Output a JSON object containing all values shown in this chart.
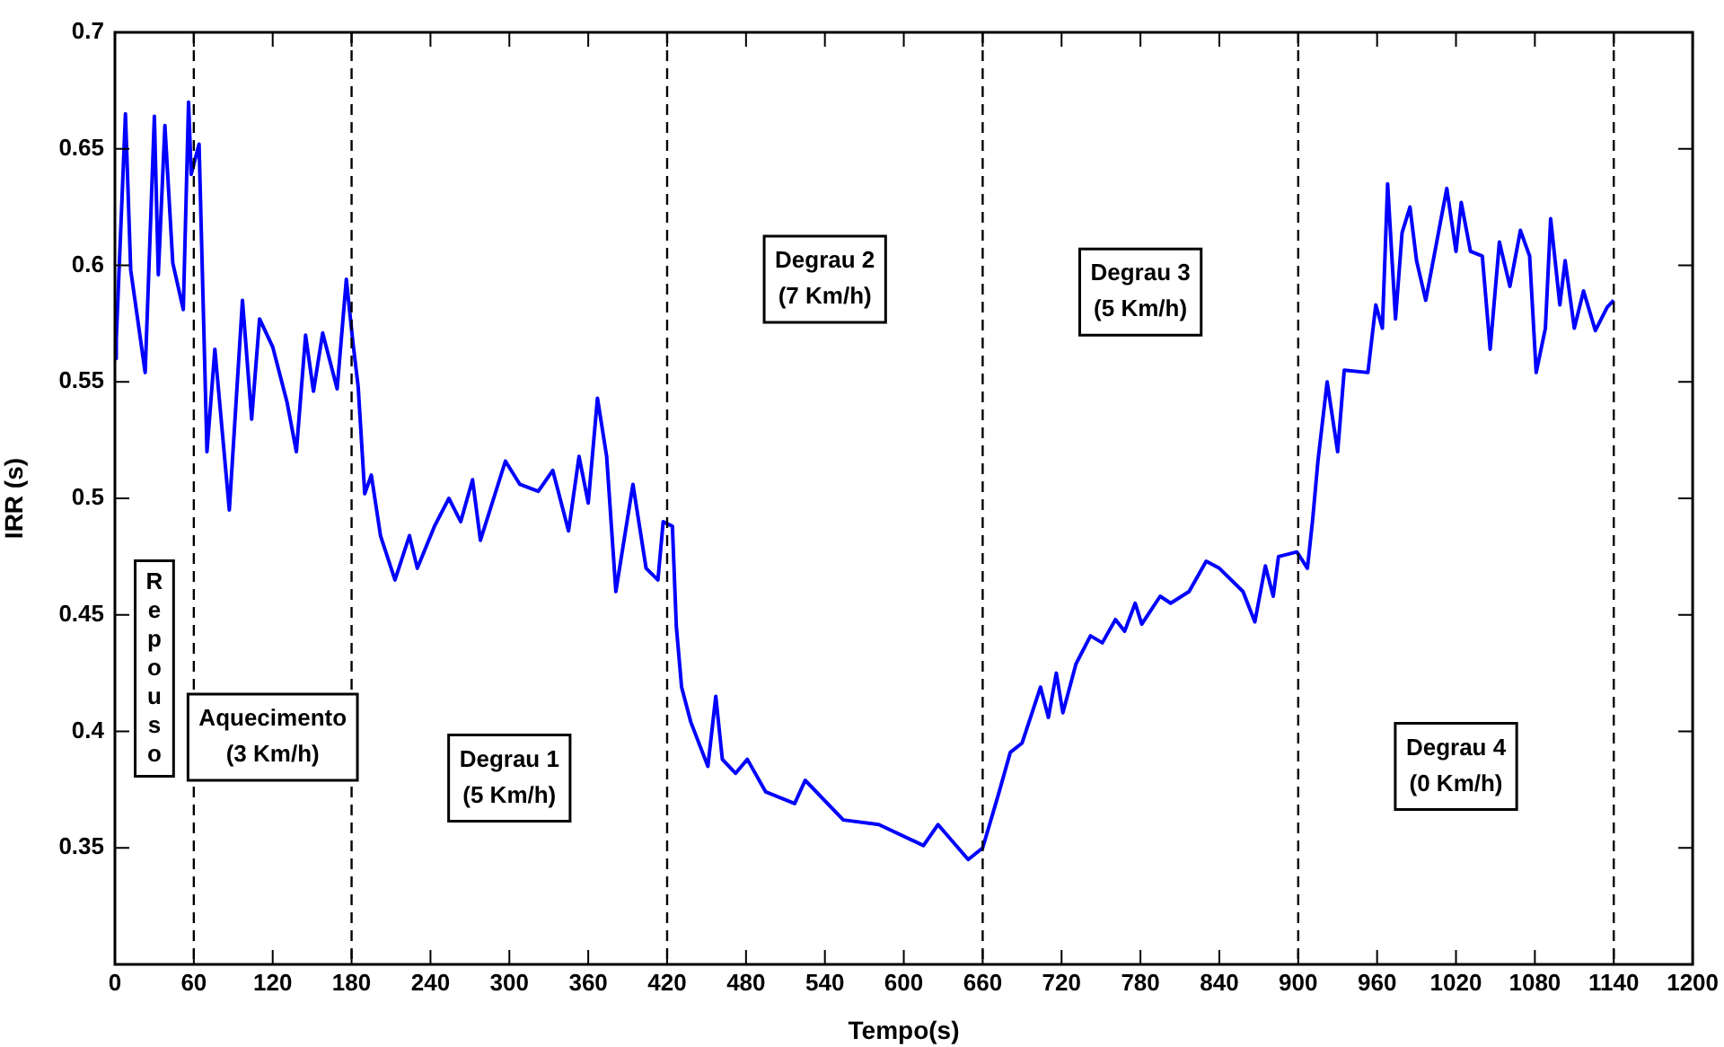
{
  "chart_data": {
    "type": "line",
    "xlabel": "Tempo(s)",
    "ylabel": "IRR (s)",
    "xlim": [
      0,
      1200
    ],
    "xticks": [
      0,
      60,
      120,
      180,
      240,
      300,
      360,
      420,
      480,
      540,
      600,
      660,
      720,
      780,
      840,
      900,
      960,
      1020,
      1080,
      1140,
      1200
    ],
    "ylim": [
      0.3,
      0.7
    ],
    "yticks": [
      0.35,
      0.4,
      0.45,
      0.5,
      0.55,
      0.6,
      0.65,
      0.7
    ],
    "grid": false,
    "legend": false,
    "marker": "none",
    "line_style": "solid",
    "series": [
      {
        "color": "#0000ff",
        "x": [
          0,
          1,
          8,
          12,
          23,
          30,
          33,
          38,
          44,
          52,
          56,
          58,
          64,
          70,
          76,
          87,
          97,
          104,
          110,
          120,
          131,
          138,
          145,
          151,
          158,
          169,
          176,
          181,
          185,
          190,
          195,
          202,
          213,
          224,
          230,
          243,
          254,
          263,
          272,
          278,
          297,
          308,
          322,
          333,
          345,
          353,
          360,
          367,
          374,
          381,
          394,
          404,
          413,
          417,
          424,
          427,
          431,
          438,
          451,
          457,
          462,
          472,
          481,
          495,
          517,
          525,
          554,
          581,
          615,
          626,
          649,
          660,
          672,
          681,
          690,
          704,
          710,
          716,
          721,
          731,
          742,
          751,
          761,
          768,
          776,
          781,
          795,
          803,
          817,
          830,
          840,
          858,
          867,
          875,
          881,
          885,
          899,
          907,
          911,
          915,
          922,
          930,
          935,
          953,
          959,
          964,
          968,
          974,
          979,
          985,
          990,
          997,
          1013,
          1020,
          1024,
          1031,
          1040,
          1046,
          1053,
          1061,
          1069,
          1076,
          1081,
          1088,
          1092,
          1099,
          1103,
          1110,
          1117,
          1126,
          1135,
          1140
        ],
        "values": [
          0.56,
          0.568,
          0.665,
          0.598,
          0.554,
          0.664,
          0.596,
          0.66,
          0.601,
          0.581,
          0.67,
          0.639,
          0.652,
          0.52,
          0.564,
          0.495,
          0.585,
          0.534,
          0.577,
          0.565,
          0.541,
          0.52,
          0.57,
          0.546,
          0.571,
          0.547,
          0.594,
          0.567,
          0.548,
          0.502,
          0.51,
          0.484,
          0.465,
          0.484,
          0.47,
          0.488,
          0.5,
          0.49,
          0.508,
          0.482,
          0.516,
          0.506,
          0.503,
          0.512,
          0.486,
          0.518,
          0.498,
          0.543,
          0.518,
          0.46,
          0.506,
          0.47,
          0.465,
          0.49,
          0.488,
          0.445,
          0.419,
          0.404,
          0.385,
          0.415,
          0.388,
          0.382,
          0.388,
          0.374,
          0.369,
          0.379,
          0.362,
          0.36,
          0.351,
          0.36,
          0.345,
          0.35,
          0.373,
          0.391,
          0.395,
          0.419,
          0.406,
          0.425,
          0.408,
          0.429,
          0.441,
          0.438,
          0.448,
          0.443,
          0.455,
          0.446,
          0.458,
          0.455,
          0.46,
          0.473,
          0.47,
          0.46,
          0.447,
          0.471,
          0.458,
          0.475,
          0.477,
          0.47,
          0.491,
          0.516,
          0.55,
          0.52,
          0.555,
          0.554,
          0.583,
          0.573,
          0.635,
          0.577,
          0.614,
          0.625,
          0.602,
          0.585,
          0.633,
          0.606,
          0.627,
          0.606,
          0.604,
          0.564,
          0.61,
          0.591,
          0.615,
          0.604,
          0.554,
          0.573,
          0.62,
          0.583,
          0.602,
          0.573,
          0.589,
          0.572,
          0.582,
          0.585
        ]
      }
    ],
    "ref_lines": [
      {
        "axis": "x",
        "value": 60,
        "line_style": "dashed",
        "color": "#000000"
      },
      {
        "axis": "x",
        "value": 180,
        "line_style": "dashed",
        "color": "#000000"
      },
      {
        "axis": "x",
        "value": 420,
        "line_style": "dashed",
        "color": "#000000"
      },
      {
        "axis": "x",
        "value": 660,
        "line_style": "dashed",
        "color": "#000000"
      },
      {
        "axis": "x",
        "value": 900,
        "line_style": "dashed",
        "color": "#000000"
      },
      {
        "axis": "x",
        "value": 1140,
        "line_style": "dashed",
        "color": "#000000"
      }
    ],
    "annotations": [
      "Repouso",
      "Aquecimento\n(3 Km/h)",
      "Degrau 1\n(5 Km/h)",
      "Degrau 2\n(7 Km/h)",
      "Degrau 3\n(5 Km/h)",
      "Degrau 4\n(0 Km/h)"
    ]
  }
}
